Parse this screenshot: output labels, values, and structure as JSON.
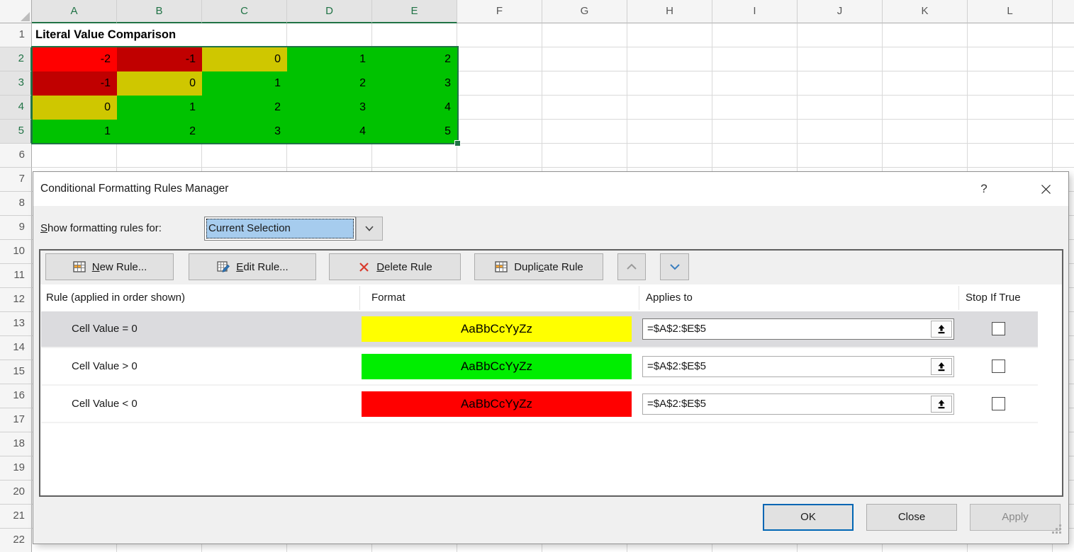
{
  "sheet": {
    "a1_text": "Literal Value Comparison",
    "col_headers": [
      "A",
      "B",
      "C",
      "D",
      "E",
      "F",
      "G",
      "H",
      "I",
      "J",
      "K",
      "L",
      ""
    ],
    "selected_cols": [
      0,
      1,
      2,
      3,
      4
    ],
    "row_headers": [
      "1",
      "2",
      "3",
      "4",
      "5",
      "6",
      "7",
      "8",
      "9",
      "10",
      "11",
      "12",
      "13",
      "14",
      "15",
      "16",
      "17",
      "18",
      "19",
      "20",
      "21",
      "22"
    ],
    "selected_rows": [
      2,
      3,
      4,
      5
    ],
    "data_rows": [
      {
        "row": 2,
        "cells": [
          {
            "v": "-2",
            "bg": "#FF0000"
          },
          {
            "v": "-1",
            "bg": "#C00000"
          },
          {
            "v": "0",
            "bg": "#CFC700"
          },
          {
            "v": "1",
            "bg": "#00C200"
          },
          {
            "v": "2",
            "bg": "#00C200"
          }
        ]
      },
      {
        "row": 3,
        "cells": [
          {
            "v": "-1",
            "bg": "#C00000"
          },
          {
            "v": "0",
            "bg": "#CFC700"
          },
          {
            "v": "1",
            "bg": "#00C200"
          },
          {
            "v": "2",
            "bg": "#00C200"
          },
          {
            "v": "3",
            "bg": "#00C200"
          }
        ]
      },
      {
        "row": 4,
        "cells": [
          {
            "v": "0",
            "bg": "#CFC700"
          },
          {
            "v": "1",
            "bg": "#00C200"
          },
          {
            "v": "2",
            "bg": "#00C200"
          },
          {
            "v": "3",
            "bg": "#00C200"
          },
          {
            "v": "4",
            "bg": "#00C200"
          }
        ]
      },
      {
        "row": 5,
        "cells": [
          {
            "v": "1",
            "bg": "#00C200"
          },
          {
            "v": "2",
            "bg": "#00C200"
          },
          {
            "v": "3",
            "bg": "#00C200"
          },
          {
            "v": "4",
            "bg": "#00C200"
          },
          {
            "v": "5",
            "bg": "#00C200"
          }
        ]
      }
    ],
    "selection_range": "A2:E5"
  },
  "dialog": {
    "title": "Conditional Formatting Rules Manager",
    "help_glyph": "?",
    "show_label": {
      "u": "S",
      "post": "how formatting rules for:"
    },
    "show_value": "Current Selection",
    "toolbar": [
      {
        "id": "new-rule",
        "icon": "table",
        "pre": "",
        "u": "N",
        "post": "ew Rule..."
      },
      {
        "id": "edit-rule",
        "icon": "table-edit",
        "pre": "",
        "u": "E",
        "post": "dit Rule..."
      },
      {
        "id": "delete-rule",
        "icon": "red-x",
        "pre": "",
        "u": "D",
        "post": "elete Rule"
      },
      {
        "id": "duplicate-rule",
        "icon": "table",
        "pre": "Dupli",
        "u": "c",
        "post": "ate Rule"
      }
    ],
    "list_headers": [
      "Rule (applied in order shown)",
      "Format",
      "Applies to",
      "Stop If True"
    ],
    "rules": [
      {
        "name": "Cell Value = 0",
        "swatch": "#FFFF00",
        "sample": "AaBbCcYyZz",
        "applies": "=$A$2:$E$5",
        "stop_if_true": false,
        "selected": true
      },
      {
        "name": "Cell Value > 0",
        "swatch": "#00EE00",
        "sample": "AaBbCcYyZz",
        "applies": "=$A$2:$E$5",
        "stop_if_true": false,
        "selected": false
      },
      {
        "name": "Cell Value < 0",
        "swatch": "#FF0000",
        "sample": "AaBbCcYyZz",
        "applies": "=$A$2:$E$5",
        "stop_if_true": false,
        "selected": false
      }
    ],
    "footer": {
      "ok": "OK",
      "close": "Close",
      "apply": "Apply"
    },
    "accent_colors": {
      "excel_green": "#217346",
      "default_button_border": "#0066B4",
      "selected_row": "#DBDBDE"
    }
  }
}
